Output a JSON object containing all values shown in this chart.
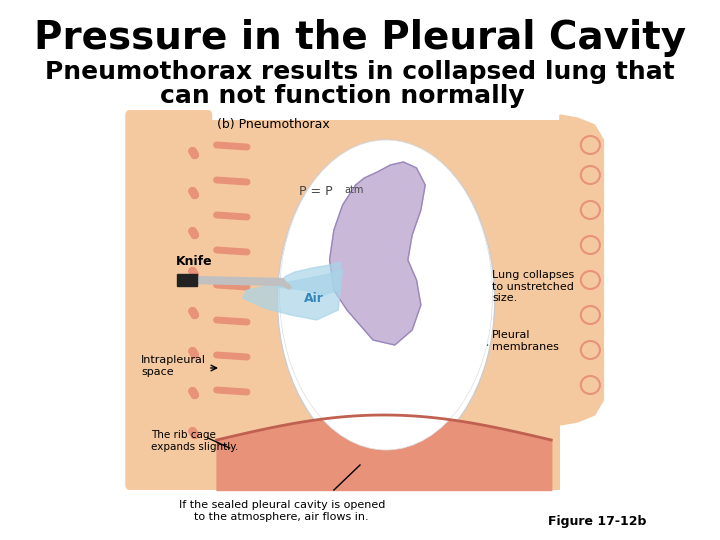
{
  "title": "Pressure in the Pleural Cavity",
  "subtitle_line1": "Pneumothorax results in collapsed lung that",
  "subtitle_line2": "can not function normally",
  "title_fontsize": 28,
  "subtitle_fontsize": 18,
  "figure_caption": "Figure 17-12b",
  "bg_color": "#ffffff",
  "title_color": "#000000",
  "subtitle_color": "#000000",
  "caption_color": "#000000",
  "diagram_label": "(b) Pneumothorax",
  "label_p": "P = P",
  "label_p_sub": "atm",
  "label_knife": "Knife",
  "label_air": "Air",
  "label_lung": "Lung collapses\nto unstretched\nsize.",
  "label_pleural": "Pleural\nmembranes",
  "label_intrapleural": "Intrapleural\nspace",
  "label_ribcage": "The rib cage\nexpands slightly.",
  "label_bottom": "If the sealed pleural cavity is opened\nto the atmosphere, air flows in.",
  "body_fill": "#f5c9a0",
  "cavity_fill": "#fdf5ee",
  "lung_fill": "#c9b8d8",
  "rib_color": "#e8927a",
  "air_color": "#a8d4e8",
  "knife_color": "#222222",
  "knife_blade": "#c0c0c0",
  "line_color": "#000000",
  "diaphragm_color": "#e8927a"
}
